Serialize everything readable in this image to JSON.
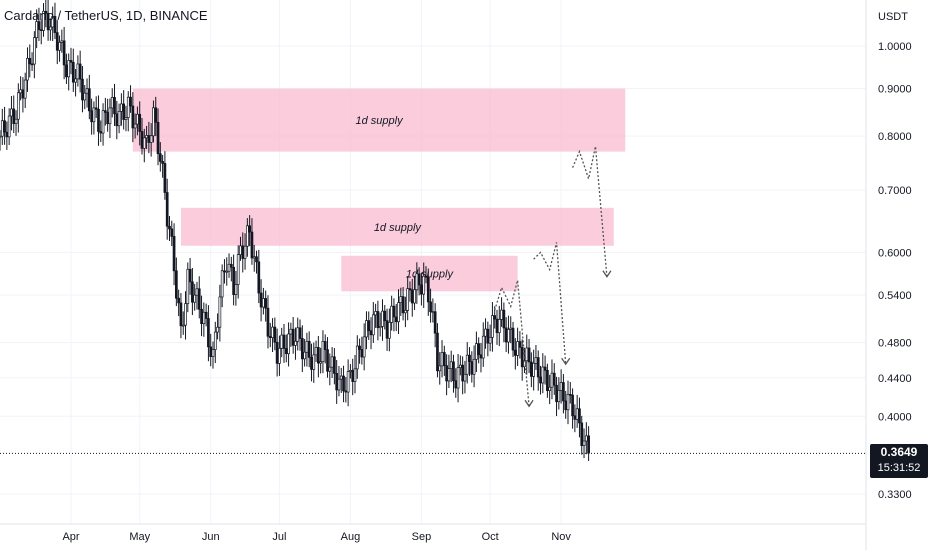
{
  "title": "Cardano / TetherUS, 1D, BINANCE",
  "currency": "USDT",
  "last_price": "0.3649",
  "countdown": "15:31:52",
  "colors": {
    "up": "#131722",
    "down": "#131722",
    "zone": "#f8bbd0",
    "grid": "#f0f3fa",
    "arrow": "#555555",
    "last": "#131722"
  },
  "chart_data": {
    "type": "candlestick",
    "y_scale": "log",
    "y_ticks": [
      1.0,
      0.9,
      0.8,
      0.7,
      0.6,
      0.54,
      0.48,
      0.44,
      0.4,
      0.33
    ],
    "y_tick_labels": [
      "1.0000",
      "0.9000",
      "0.8000",
      "0.7000",
      "0.6000",
      "0.5400",
      "0.4800",
      "0.4400",
      "0.4000",
      "0.3300"
    ],
    "x_ticks": [
      "Apr",
      "May",
      "Jun",
      "Jul",
      "Aug",
      "Sep",
      "Oct",
      "Nov"
    ],
    "x_tick_dates": [
      "2021-04-01",
      "2021-05-01",
      "2021-06-01",
      "2021-07-01",
      "2021-08-01",
      "2021-09-01",
      "2021-10-01",
      "2021-11-01"
    ],
    "x_start": "2021-03-01",
    "ohlc_daily_close_approx": [
      {
        "x": "2021-03-01",
        "c": 0.8
      },
      {
        "x": "2021-03-08",
        "c": 0.85
      },
      {
        "x": "2021-03-14",
        "c": 0.96
      },
      {
        "x": "2021-03-18",
        "c": 1.06
      },
      {
        "x": "2021-03-22",
        "c": 1.07
      },
      {
        "x": "2021-03-26",
        "c": 1.02
      },
      {
        "x": "2021-03-30",
        "c": 0.95
      },
      {
        "x": "2021-04-04",
        "c": 0.93
      },
      {
        "x": "2021-04-09",
        "c": 0.86
      },
      {
        "x": "2021-04-14",
        "c": 0.82
      },
      {
        "x": "2021-04-18",
        "c": 0.86
      },
      {
        "x": "2021-04-22",
        "c": 0.84
      },
      {
        "x": "2021-04-26",
        "c": 0.86
      },
      {
        "x": "2021-04-30",
        "c": 0.82
      },
      {
        "x": "2021-05-04",
        "c": 0.78
      },
      {
        "x": "2021-05-07",
        "c": 0.84
      },
      {
        "x": "2021-05-10",
        "c": 0.76
      },
      {
        "x": "2021-05-13",
        "c": 0.66
      },
      {
        "x": "2021-05-16",
        "c": 0.58
      },
      {
        "x": "2021-05-19",
        "c": 0.49
      },
      {
        "x": "2021-05-22",
        "c": 0.56
      },
      {
        "x": "2021-05-25",
        "c": 0.54
      },
      {
        "x": "2021-05-29",
        "c": 0.51
      },
      {
        "x": "2021-06-02",
        "c": 0.46
      },
      {
        "x": "2021-06-05",
        "c": 0.54
      },
      {
        "x": "2021-06-08",
        "c": 0.59
      },
      {
        "x": "2021-06-11",
        "c": 0.55
      },
      {
        "x": "2021-06-14",
        "c": 0.6
      },
      {
        "x": "2021-06-18",
        "c": 0.63
      },
      {
        "x": "2021-06-22",
        "c": 0.55
      },
      {
        "x": "2021-06-26",
        "c": 0.5
      },
      {
        "x": "2021-06-30",
        "c": 0.47
      },
      {
        "x": "2021-07-04",
        "c": 0.48
      },
      {
        "x": "2021-07-08",
        "c": 0.49
      },
      {
        "x": "2021-07-12",
        "c": 0.47
      },
      {
        "x": "2021-07-16",
        "c": 0.46
      },
      {
        "x": "2021-07-20",
        "c": 0.47
      },
      {
        "x": "2021-07-24",
        "c": 0.45
      },
      {
        "x": "2021-07-28",
        "c": 0.43
      },
      {
        "x": "2021-08-01",
        "c": 0.44
      },
      {
        "x": "2021-08-05",
        "c": 0.47
      },
      {
        "x": "2021-08-09",
        "c": 0.5
      },
      {
        "x": "2021-08-13",
        "c": 0.51
      },
      {
        "x": "2021-08-17",
        "c": 0.5
      },
      {
        "x": "2021-08-21",
        "c": 0.52
      },
      {
        "x": "2021-08-25",
        "c": 0.53
      },
      {
        "x": "2021-08-29",
        "c": 0.55
      },
      {
        "x": "2021-09-02",
        "c": 0.56
      },
      {
        "x": "2021-09-05",
        "c": 0.53
      },
      {
        "x": "2021-09-08",
        "c": 0.46
      },
      {
        "x": "2021-09-12",
        "c": 0.45
      },
      {
        "x": "2021-09-16",
        "c": 0.44
      },
      {
        "x": "2021-09-20",
        "c": 0.45
      },
      {
        "x": "2021-09-24",
        "c": 0.46
      },
      {
        "x": "2021-09-28",
        "c": 0.48
      },
      {
        "x": "2021-10-02",
        "c": 0.5
      },
      {
        "x": "2021-10-05",
        "c": 0.51
      },
      {
        "x": "2021-10-09",
        "c": 0.49
      },
      {
        "x": "2021-10-13",
        "c": 0.47
      },
      {
        "x": "2021-10-17",
        "c": 0.46
      },
      {
        "x": "2021-10-21",
        "c": 0.45
      },
      {
        "x": "2021-10-25",
        "c": 0.44
      },
      {
        "x": "2021-10-29",
        "c": 0.43
      },
      {
        "x": "2021-11-02",
        "c": 0.42
      },
      {
        "x": "2021-11-06",
        "c": 0.41
      },
      {
        "x": "2021-11-09",
        "c": 0.39
      },
      {
        "x": "2021-11-12",
        "c": 0.37
      },
      {
        "x": "2021-11-14",
        "c": 0.365
      }
    ],
    "annotations": [
      {
        "label": "1d supply",
        "x0": "2021-04-28",
        "x1": "2021-11-29",
        "y0": 0.77,
        "y1": 0.9
      },
      {
        "label": "1d supply",
        "x0": "2021-05-19",
        "x1": "2021-11-24",
        "y0": 0.61,
        "y1": 0.67
      },
      {
        "label": "1d supply",
        "x0": "2021-07-28",
        "x1": "2021-10-13",
        "y0": 0.545,
        "y1": 0.595
      }
    ],
    "projections": [
      {
        "x": [
          "2021-10-03",
          "2021-10-06",
          "2021-10-10",
          "2021-10-13",
          "2021-10-18"
        ],
        "y": [
          0.52,
          0.55,
          0.525,
          0.56,
          0.41
        ]
      },
      {
        "x": [
          "2021-10-20",
          "2021-10-23",
          "2021-10-27",
          "2021-10-30",
          "2021-11-03"
        ],
        "y": [
          0.59,
          0.6,
          0.575,
          0.615,
          0.455
        ]
      },
      {
        "x": [
          "2021-11-06",
          "2021-11-09",
          "2021-11-13",
          "2021-11-16",
          "2021-11-21"
        ],
        "y": [
          0.74,
          0.77,
          0.72,
          0.78,
          0.565
        ]
      }
    ]
  }
}
